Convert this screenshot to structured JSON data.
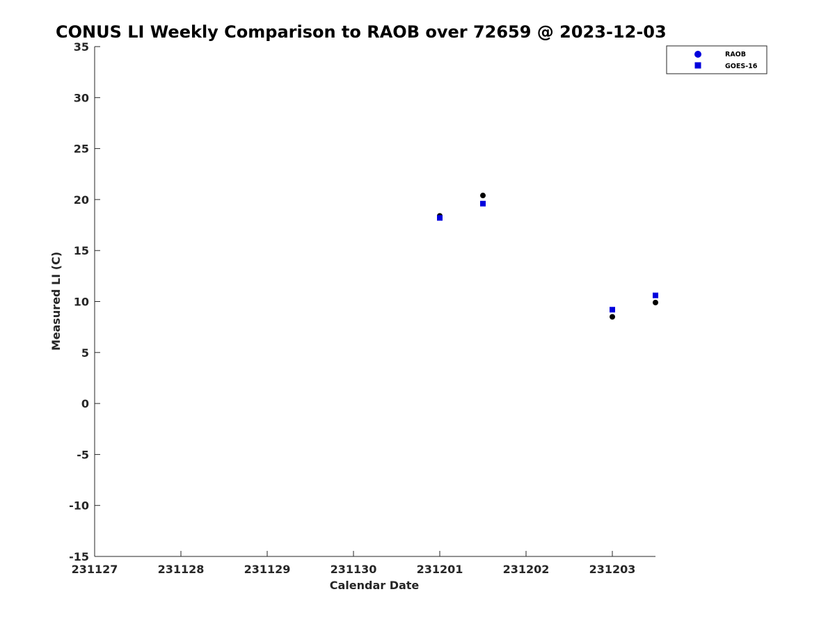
{
  "chart_data": {
    "type": "scatter",
    "title": "CONUS LI Weekly Comparison to RAOB over 72659 @ 2023-12-03",
    "xlabel": "Calendar Date",
    "ylabel": "Measured LI (C)",
    "xlim": [
      0,
      6.5
    ],
    "ylim": [
      -15,
      35
    ],
    "x_tick_values": [
      0,
      1,
      2,
      3,
      4,
      5,
      6
    ],
    "x_tick_labels": [
      "231127",
      "231128",
      "231129",
      "231130",
      "231201",
      "231202",
      "231203"
    ],
    "y_tick_values": [
      35,
      30,
      25,
      20,
      15,
      10,
      5,
      0,
      -5,
      -10,
      -15
    ],
    "y_tick_labels": [
      "35",
      "30",
      "25",
      "20",
      "15",
      "10",
      "5",
      "0",
      "-5",
      "-10",
      "-15"
    ],
    "grid": false,
    "legend_position": "top-right",
    "series": [
      {
        "name": "RAOB",
        "marker": "circle",
        "legend_color": "#0000dd",
        "point_color": "#000000",
        "points": [
          {
            "x": 4.0,
            "y": 18.4
          },
          {
            "x": 4.5,
            "y": 20.4
          },
          {
            "x": 6.0,
            "y": 8.5
          },
          {
            "x": 6.5,
            "y": 9.9
          }
        ]
      },
      {
        "name": "GOES-16",
        "marker": "square",
        "legend_color": "#0000dd",
        "point_color": "#0000dd",
        "points": [
          {
            "x": 4.0,
            "y": 18.2
          },
          {
            "x": 4.5,
            "y": 19.6
          },
          {
            "x": 6.0,
            "y": 9.2
          },
          {
            "x": 6.5,
            "y": 10.6
          }
        ]
      }
    ]
  }
}
